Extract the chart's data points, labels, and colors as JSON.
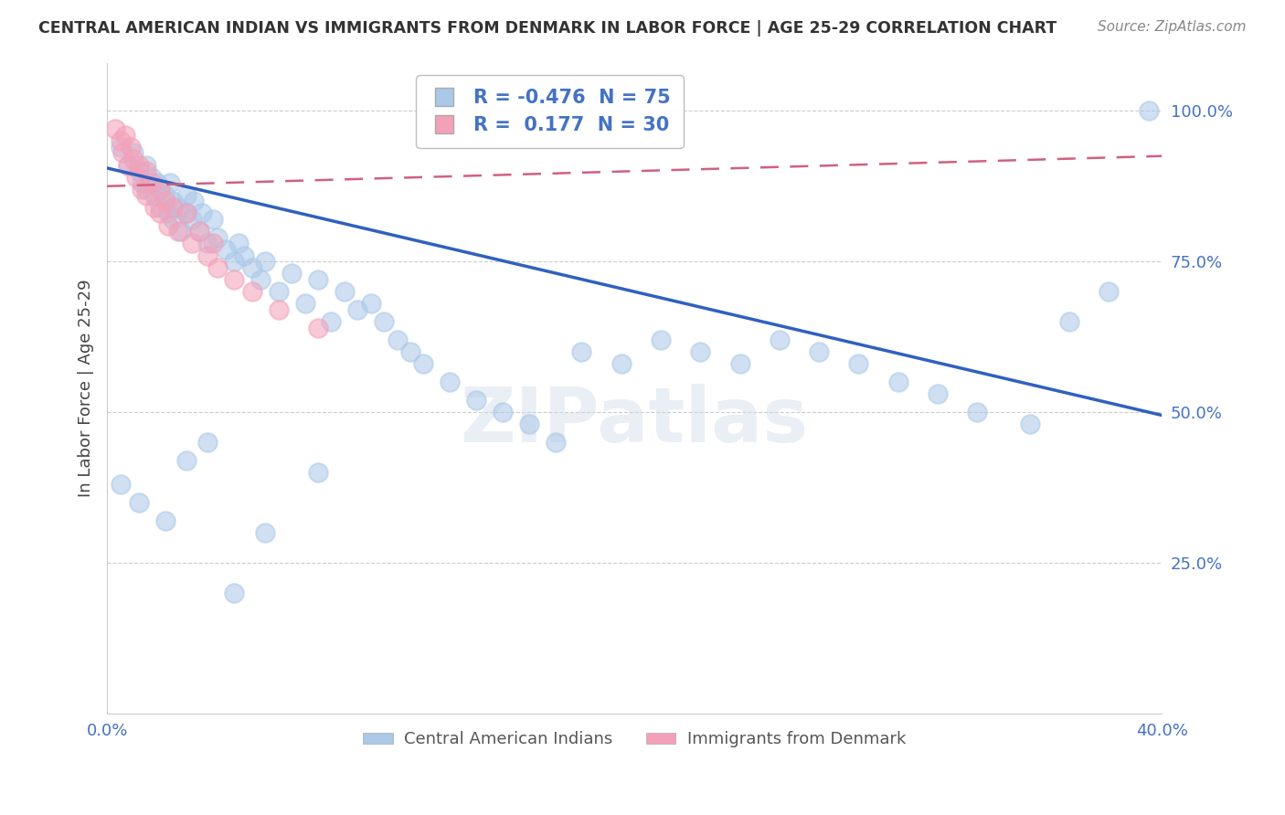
{
  "title": "CENTRAL AMERICAN INDIAN VS IMMIGRANTS FROM DENMARK IN LABOR FORCE | AGE 25-29 CORRELATION CHART",
  "source": "Source: ZipAtlas.com",
  "ylabel": "In Labor Force | Age 25-29",
  "xlim": [
    0.0,
    0.4
  ],
  "ylim": [
    0.0,
    1.08
  ],
  "blue_R": -0.476,
  "blue_N": 75,
  "pink_R": 0.177,
  "pink_N": 30,
  "blue_color": "#aac8e8",
  "pink_color": "#f4a0b8",
  "blue_line_color": "#3060c0",
  "pink_line_color": "#d06080",
  "blue_line_x0": 0.0,
  "blue_line_y0": 0.905,
  "blue_line_x1": 0.4,
  "blue_line_y1": 0.495,
  "pink_line_x0": 0.0,
  "pink_line_y0": 0.875,
  "pink_line_x1": 0.4,
  "pink_line_y1": 0.925,
  "legend_label_blue": "Central American Indians",
  "legend_label_pink": "Immigrants from Denmark",
  "watermark": "ZIPatlas",
  "blue_x": [
    0.005,
    0.008,
    0.01,
    0.012,
    0.013,
    0.015,
    0.015,
    0.017,
    0.018,
    0.019,
    0.02,
    0.02,
    0.022,
    0.023,
    0.024,
    0.025,
    0.025,
    0.027,
    0.028,
    0.03,
    0.03,
    0.032,
    0.033,
    0.035,
    0.036,
    0.038,
    0.04,
    0.042,
    0.045,
    0.048,
    0.05,
    0.052,
    0.055,
    0.058,
    0.06,
    0.065,
    0.07,
    0.075,
    0.08,
    0.085,
    0.09,
    0.095,
    0.1,
    0.105,
    0.11,
    0.115,
    0.12,
    0.13,
    0.14,
    0.15,
    0.16,
    0.17,
    0.18,
    0.195,
    0.21,
    0.225,
    0.24,
    0.255,
    0.27,
    0.285,
    0.3,
    0.315,
    0.33,
    0.35,
    0.365,
    0.38,
    0.005,
    0.012,
    0.022,
    0.03,
    0.038,
    0.048,
    0.06,
    0.08,
    0.395
  ],
  "blue_y": [
    0.94,
    0.91,
    0.93,
    0.9,
    0.88,
    0.91,
    0.87,
    0.89,
    0.86,
    0.88,
    0.87,
    0.84,
    0.86,
    0.83,
    0.88,
    0.85,
    0.82,
    0.84,
    0.8,
    0.86,
    0.83,
    0.82,
    0.85,
    0.8,
    0.83,
    0.78,
    0.82,
    0.79,
    0.77,
    0.75,
    0.78,
    0.76,
    0.74,
    0.72,
    0.75,
    0.7,
    0.73,
    0.68,
    0.72,
    0.65,
    0.7,
    0.67,
    0.68,
    0.65,
    0.62,
    0.6,
    0.58,
    0.55,
    0.52,
    0.5,
    0.48,
    0.45,
    0.6,
    0.58,
    0.62,
    0.6,
    0.58,
    0.62,
    0.6,
    0.58,
    0.55,
    0.53,
    0.5,
    0.48,
    0.65,
    0.7,
    0.38,
    0.35,
    0.32,
    0.42,
    0.45,
    0.2,
    0.3,
    0.4,
    1.0
  ],
  "pink_x": [
    0.003,
    0.005,
    0.006,
    0.007,
    0.008,
    0.009,
    0.01,
    0.011,
    0.012,
    0.013,
    0.015,
    0.015,
    0.017,
    0.018,
    0.02,
    0.02,
    0.022,
    0.023,
    0.025,
    0.027,
    0.03,
    0.032,
    0.035,
    0.038,
    0.04,
    0.042,
    0.048,
    0.055,
    0.065,
    0.08
  ],
  "pink_y": [
    0.97,
    0.95,
    0.93,
    0.96,
    0.91,
    0.94,
    0.92,
    0.89,
    0.91,
    0.87,
    0.9,
    0.86,
    0.88,
    0.84,
    0.87,
    0.83,
    0.85,
    0.81,
    0.84,
    0.8,
    0.83,
    0.78,
    0.8,
    0.76,
    0.78,
    0.74,
    0.72,
    0.7,
    0.67,
    0.64
  ]
}
